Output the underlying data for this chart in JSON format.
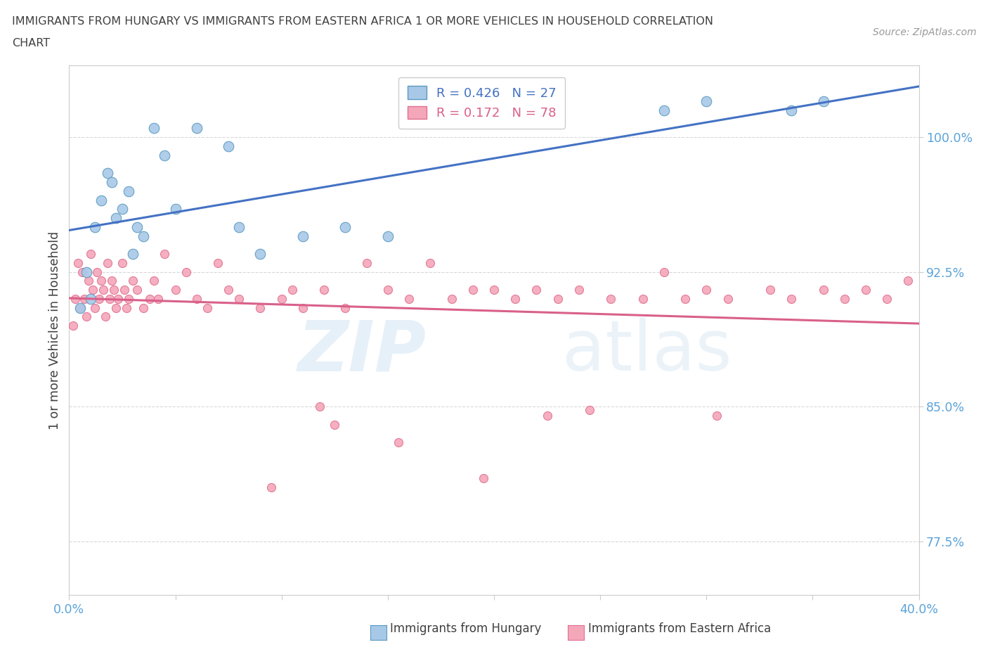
{
  "title_line1": "IMMIGRANTS FROM HUNGARY VS IMMIGRANTS FROM EASTERN AFRICA 1 OR MORE VEHICLES IN HOUSEHOLD CORRELATION",
  "title_line2": "CHART",
  "source": "Source: ZipAtlas.com",
  "ylabel": "1 or more Vehicles in Household",
  "xlim": [
    0.0,
    40.0
  ],
  "ylim": [
    74.5,
    104.0
  ],
  "yticks": [
    77.5,
    85.0,
    92.5,
    100.0
  ],
  "ytick_labels": [
    "77.5%",
    "85.0%",
    "92.5%",
    "100.0%"
  ],
  "xticks": [
    0.0,
    5.0,
    10.0,
    15.0,
    20.0,
    25.0,
    30.0,
    35.0,
    40.0
  ],
  "xtick_labels": [
    "0.0%",
    "",
    "",
    "",
    "",
    "",
    "",
    "",
    "40.0%"
  ],
  "hungary_color": "#a8c8e8",
  "hungary_edge": "#5a9abf",
  "eastern_africa_color": "#f4a7b9",
  "eastern_africa_edge": "#e07090",
  "regression_hungary_color": "#4472c4",
  "regression_eastern_africa_color": "#d9608a",
  "r_hungary": 0.426,
  "n_hungary": 27,
  "r_eastern_africa": 0.172,
  "n_eastern_africa": 78,
  "hungary_x": [
    0.5,
    0.8,
    1.0,
    1.2,
    1.5,
    1.8,
    2.0,
    2.2,
    2.5,
    2.8,
    3.0,
    3.2,
    3.5,
    4.0,
    4.5,
    5.0,
    6.0,
    7.5,
    8.0,
    9.0,
    11.0,
    13.0,
    15.0,
    28.0,
    30.0,
    34.0,
    35.5
  ],
  "hungary_y": [
    90.5,
    92.5,
    91.0,
    95.0,
    96.5,
    98.0,
    97.5,
    95.5,
    96.0,
    97.0,
    93.5,
    95.0,
    94.5,
    100.5,
    99.0,
    96.0,
    100.5,
    99.5,
    95.0,
    93.5,
    94.5,
    95.0,
    94.5,
    101.5,
    102.0,
    101.5,
    102.0
  ],
  "eastern_africa_x": [
    0.2,
    0.3,
    0.4,
    0.5,
    0.6,
    0.7,
    0.8,
    0.9,
    1.0,
    1.1,
    1.2,
    1.3,
    1.4,
    1.5,
    1.6,
    1.7,
    1.8,
    1.9,
    2.0,
    2.1,
    2.2,
    2.3,
    2.5,
    2.6,
    2.7,
    2.8,
    3.0,
    3.2,
    3.5,
    3.8,
    4.0,
    4.2,
    4.5,
    5.0,
    5.5,
    6.0,
    6.5,
    7.0,
    7.5,
    8.0,
    9.0,
    10.0,
    10.5,
    11.0,
    12.0,
    13.0,
    14.0,
    15.0,
    16.0,
    17.0,
    18.0,
    19.0,
    20.0,
    21.0,
    22.0,
    23.0,
    24.0,
    25.5,
    27.0,
    28.0,
    29.0,
    30.0,
    31.0,
    33.0,
    34.0,
    35.5,
    36.5,
    37.5,
    38.5,
    39.5,
    22.5,
    24.5,
    30.5,
    15.5,
    12.5,
    19.5,
    9.5,
    11.8
  ],
  "eastern_africa_y": [
    89.5,
    91.0,
    93.0,
    90.5,
    92.5,
    91.0,
    90.0,
    92.0,
    93.5,
    91.5,
    90.5,
    92.5,
    91.0,
    92.0,
    91.5,
    90.0,
    93.0,
    91.0,
    92.0,
    91.5,
    90.5,
    91.0,
    93.0,
    91.5,
    90.5,
    91.0,
    92.0,
    91.5,
    90.5,
    91.0,
    92.0,
    91.0,
    93.5,
    91.5,
    92.5,
    91.0,
    90.5,
    93.0,
    91.5,
    91.0,
    90.5,
    91.0,
    91.5,
    90.5,
    91.5,
    90.5,
    93.0,
    91.5,
    91.0,
    93.0,
    91.0,
    91.5,
    91.5,
    91.0,
    91.5,
    91.0,
    91.5,
    91.0,
    91.0,
    92.5,
    91.0,
    91.5,
    91.0,
    91.5,
    91.0,
    91.5,
    91.0,
    91.5,
    91.0,
    92.0,
    84.5,
    84.8,
    84.5,
    83.0,
    84.0,
    81.0,
    80.5,
    85.0
  ],
  "watermark_zip": "ZIP",
  "watermark_atlas": "atlas",
  "background_color": "#ffffff",
  "grid_color": "#d8d8d8",
  "axis_color": "#cccccc",
  "tick_color": "#5ba3d9",
  "title_color": "#404040",
  "ylabel_color": "#404040",
  "marker_size_hungary": 110,
  "marker_size_eastern_africa": 75,
  "legend_r_color": "#4472c4",
  "legend_n_color": "#4472c4",
  "legend_r2_color": "#d9608a",
  "legend_n2_color": "#d9608a"
}
